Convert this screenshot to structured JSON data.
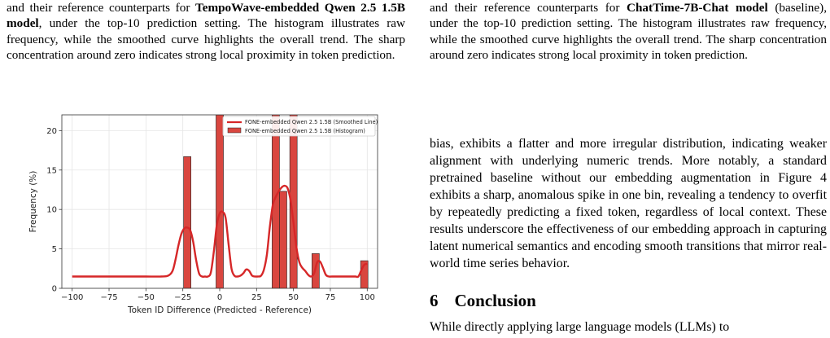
{
  "left_caption": {
    "pre": "and their reference counterparts for ",
    "model": "TempoWave-embedded Qwen 2.5 1.5B model",
    "post": ", under the top-10 prediction setting. The histogram illustrates raw frequency, while the smoothed curve highlights the overall trend. The sharp concentration around zero indicates strong local proximity in token prediction."
  },
  "right_caption": {
    "pre": "and their reference counterparts for ",
    "model": "ChatTime-7B-Chat model",
    "post": " (baseline), under the top-10 prediction setting. The histogram illustrates raw frequency, while the smoothed curve highlights the overall trend. The sharp concentration around zero indicates strong local proximity in token prediction."
  },
  "body_text": "bias, exhibits a flatter and more irregular distribution, indicating weaker alignment with underlying numeric trends. More notably, a standard pretrained baseline without our embedding augmentation in Figure 4 exhibits a sharp, anomalous spike in one bin, revealing a tendency to overfit by repeatedly predicting a fixed token, regardless of local context. These results underscore the effectiveness of our embedding approach in capturing latent numerical semantics and encoding smooth transitions that mirror real-world time series behavior.",
  "section": {
    "number": "6",
    "title": "Conclusion"
  },
  "body_text_2": "While directly applying large language models (LLMs) to",
  "colors": {
    "bar": "#d9463f",
    "line": "#d62728",
    "edge": "#222222",
    "grid": "#e5e5e5"
  },
  "chart_data": {
    "type": "bar",
    "title": "",
    "xlabel": "Token ID Difference (Predicted - Reference)",
    "ylabel": "Frequency (%)",
    "xlim": [
      -107,
      107
    ],
    "ylim": [
      0,
      22
    ],
    "xticks": [
      -100,
      -75,
      -50,
      -25,
      0,
      25,
      50,
      75,
      100
    ],
    "yticks": [
      0,
      5,
      10,
      15,
      20
    ],
    "grid": true,
    "legend_placement": "top-right",
    "bin_width": 5,
    "series": [
      {
        "name": "FONE-embedded Qwen 2.5 1.5B (Smoothed Line)",
        "kind": "line",
        "x": [
          -100,
          -90,
          -80,
          -70,
          -60,
          -50,
          -40,
          -35,
          -32,
          -30,
          -28,
          -26,
          -24,
          -22,
          -20,
          -18,
          -16,
          -14,
          -12,
          -10,
          -8,
          -6,
          -4,
          -2,
          0,
          2,
          4,
          6,
          8,
          10,
          12,
          14,
          16,
          18,
          20,
          22,
          24,
          26,
          28,
          30,
          32,
          34,
          36,
          38,
          40,
          42,
          44,
          46,
          48,
          50,
          52,
          54,
          56,
          58,
          60,
          62,
          64,
          66,
          68,
          70,
          72,
          74,
          76,
          78,
          80,
          84,
          88,
          92,
          94,
          96,
          98,
          100
        ],
        "y": [
          1.5,
          1.5,
          1.5,
          1.5,
          1.5,
          1.5,
          1.5,
          1.6,
          2.2,
          3.6,
          5.4,
          6.9,
          7.6,
          7.7,
          7.4,
          5.9,
          3.6,
          1.9,
          1.5,
          1.5,
          1.5,
          2.0,
          4.6,
          8.0,
          9.5,
          9.7,
          8.9,
          5.6,
          2.5,
          1.6,
          1.5,
          1.6,
          1.9,
          2.4,
          2.2,
          1.6,
          1.5,
          1.5,
          1.6,
          2.4,
          4.3,
          7.8,
          10.6,
          11.6,
          12.3,
          12.8,
          13.0,
          12.7,
          11.2,
          8.3,
          5.2,
          3.3,
          2.6,
          2.2,
          1.7,
          1.5,
          1.9,
          3.3,
          3.4,
          2.6,
          1.7,
          1.5,
          1.5,
          1.5,
          1.5,
          1.5,
          1.5,
          1.5,
          1.5,
          2.3,
          3.0,
          3.1
        ]
      },
      {
        "name": "FONE-embedded Qwen 2.5 1.5B (Histogram)",
        "kind": "bar",
        "x": [
          -22,
          0,
          38,
          43,
          50,
          65,
          98
        ],
        "values": [
          16.7,
          22.0,
          22.0,
          12.3,
          22.0,
          4.4,
          3.5
        ]
      }
    ]
  }
}
